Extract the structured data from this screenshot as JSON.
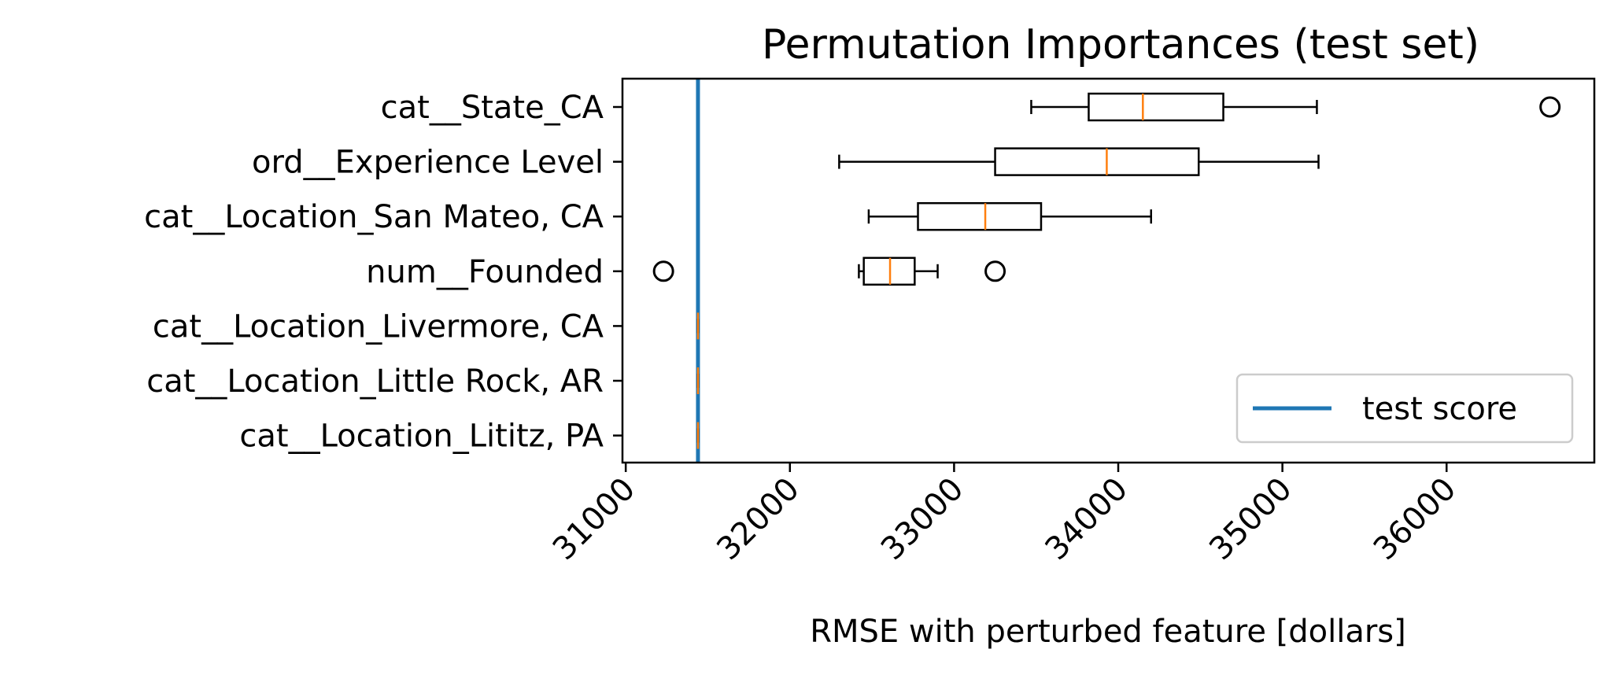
{
  "chart_data": {
    "type": "box",
    "title": "Permutation Importances (test set)",
    "xlabel": "RMSE with perturbed feature [dollars]",
    "ylabel": "",
    "xlim": [
      30980,
      36900
    ],
    "xticks": [
      31000,
      32000,
      33000,
      34000,
      35000,
      36000
    ],
    "xtick_labels": [
      "31000",
      "32000",
      "33000",
      "34000",
      "35000",
      "36000"
    ],
    "xtick_rotation": 45,
    "grid": false,
    "categories": [
      "cat__State_CA",
      "ord__Experience Level",
      "cat__Location_San Mateo, CA",
      "num__Founded",
      "cat__Location_Livermore, CA",
      "cat__Location_Little Rock, AR",
      "cat__Location_Lititz, PA"
    ],
    "boxes": [
      {
        "whisker_low": 33470,
        "q1": 33820,
        "median": 34150,
        "q3": 34640,
        "whisker_high": 35210,
        "outliers": [
          36630
        ]
      },
      {
        "whisker_low": 32300,
        "q1": 33250,
        "median": 33930,
        "q3": 34490,
        "whisker_high": 35220,
        "outliers": []
      },
      {
        "whisker_low": 32480,
        "q1": 32780,
        "median": 33190,
        "q3": 33530,
        "whisker_high": 34200,
        "outliers": []
      },
      {
        "whisker_low": 32420,
        "q1": 32450,
        "median": 32610,
        "q3": 32760,
        "whisker_high": 32900,
        "outliers": [
          31230,
          33250
        ]
      },
      {
        "whisker_low": 31440,
        "q1": 31440,
        "median": 31440,
        "q3": 31440,
        "whisker_high": 31440,
        "outliers": []
      },
      {
        "whisker_low": 31440,
        "q1": 31440,
        "median": 31440,
        "q3": 31440,
        "whisker_high": 31440,
        "outliers": []
      },
      {
        "whisker_low": 31440,
        "q1": 31440,
        "median": 31440,
        "q3": 31440,
        "whisker_high": 31440,
        "outliers": []
      }
    ],
    "reference_line": {
      "name": "test score",
      "x": 31440,
      "color": "#1f77b4"
    },
    "median_color": "#ff7f0e",
    "box_color": "#000000",
    "legend": {
      "entries": [
        "test score"
      ],
      "placement": "lower-right"
    }
  }
}
